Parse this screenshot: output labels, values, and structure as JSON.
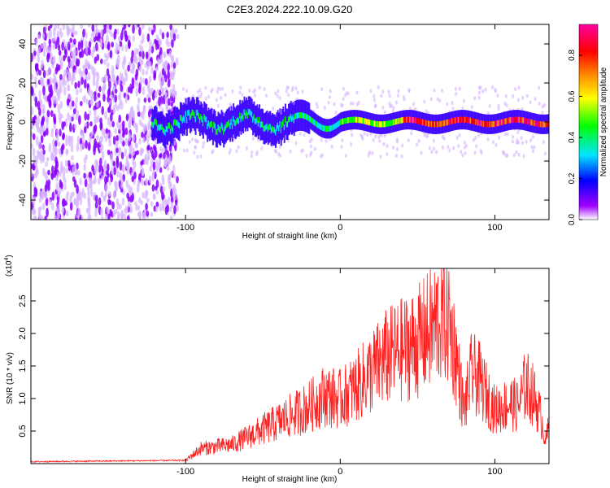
{
  "title": "C2E3.2024.222.10.09.G20",
  "chart_data": [
    {
      "type": "heatmap",
      "name": "spectrogram",
      "xlabel": "Height of straight line (km)",
      "ylabel": "Frequency (Hz)",
      "xlim": [
        -200,
        135
      ],
      "ylim": [
        -50,
        50
      ],
      "xticks": [
        -100,
        0,
        100
      ],
      "yticks": [
        -40,
        -20,
        0,
        20,
        40
      ],
      "colorbar": {
        "label": "Normalized spectral amplitude",
        "range": [
          0,
          0.95
        ],
        "ticks": [
          0.0,
          0.2,
          0.4,
          0.6,
          0.8
        ],
        "colors": [
          "#ffffff",
          "#a100ff",
          "#0000ff",
          "#00e5ff",
          "#00ff00",
          "#ffff00",
          "#ff8c00",
          "#ff0000",
          "#ff00a0"
        ]
      },
      "description_points": {
        "noise_region_x": [
          -200,
          -105
        ],
        "signal_start_x": -122,
        "signal_center_freq": 0,
        "signal_peak_region_x": [
          20,
          135
        ]
      }
    },
    {
      "type": "line",
      "name": "snr",
      "xlabel": "Height of straight line (km)",
      "ylabel": "SNR (10 * v/v)",
      "y_multiplier": "(x10",
      "y_multiplier_exp": "4",
      "y_multiplier_close": ")",
      "xlim": [
        -200,
        135
      ],
      "ylim": [
        0,
        3.0
      ],
      "xticks": [
        -100,
        0,
        100
      ],
      "yticks": [
        0.5,
        1.0,
        1.5,
        2.0,
        2.5
      ],
      "color": "#ff2020",
      "envelope": {
        "x": [
          -200,
          -100,
          -90,
          -70,
          -60,
          -50,
          -40,
          -30,
          -20,
          -10,
          0,
          10,
          20,
          30,
          40,
          50,
          60,
          65,
          70,
          75,
          80,
          85,
          90,
          100,
          110,
          115,
          120,
          125,
          130,
          133,
          135
        ],
        "y": [
          0.02,
          0.04,
          0.2,
          0.25,
          0.35,
          0.45,
          0.55,
          0.65,
          0.75,
          0.9,
          0.85,
          1.0,
          1.2,
          1.4,
          1.5,
          1.6,
          1.8,
          1.95,
          1.9,
          1.4,
          0.7,
          1.2,
          1.1,
          0.7,
          0.8,
          0.75,
          1.05,
          0.9,
          0.6,
          0.3,
          0.5
        ]
      }
    }
  ]
}
